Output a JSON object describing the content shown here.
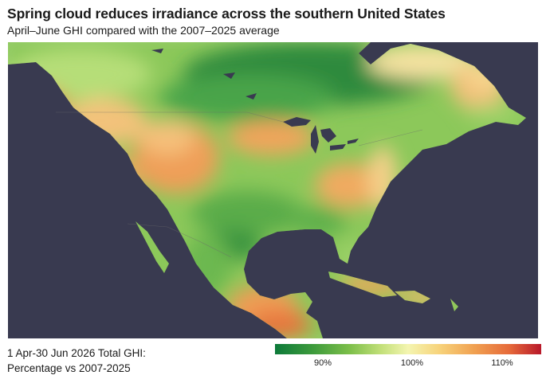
{
  "header": {
    "title": "Spring cloud reduces irradiance across the southern United States",
    "subtitle": "April–June GHI compared with the 2007–2025 average"
  },
  "legend": {
    "title_line1": "1 Apr-30 Jun 2026 Total GHI:",
    "title_line2": "Percentage vs 2007-2025",
    "ticks": [
      {
        "label": "90%",
        "value": 90
      },
      {
        "label": "100%",
        "value": 100
      },
      {
        "label": "110%",
        "value": 110
      }
    ],
    "range": [
      83,
      116
    ],
    "colors": [
      "#0d7a3a",
      "#7dbf4a",
      "#f4f5b0",
      "#f0a050",
      "#b8182a"
    ]
  },
  "map": {
    "ocean_color": "#393a50",
    "region": "North America and Central America"
  }
}
